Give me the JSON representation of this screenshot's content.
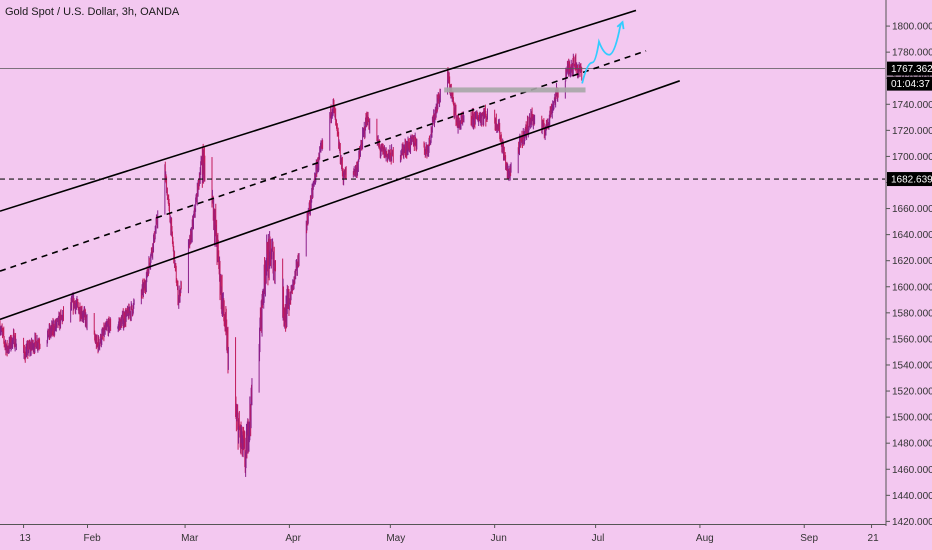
{
  "header": {
    "title": "Gold Spot / U.S. Dollar, 3h, OANDA"
  },
  "colors": {
    "background": "#f3c8f0",
    "candle_up": "#8a1f8a",
    "candle_down": "#c21a5a",
    "trendline": "#000000",
    "projection": "#33ccff",
    "resistance_box": "#a6a6a6",
    "badge": "#000000"
  },
  "chart_data": {
    "type": "candlestick",
    "x_ticks": [
      "13",
      "Feb",
      "Mar",
      "Apr",
      "May",
      "Jun",
      "Jul",
      "Aug",
      "Sep",
      "21"
    ],
    "y_ticks": [
      "1800.000",
      "1780.000",
      "1760.000",
      "1740.000",
      "1720.000",
      "1700.000",
      "1680.000",
      "1660.000",
      "1640.000",
      "1620.000",
      "1600.000",
      "1580.000",
      "1560.000",
      "1540.000",
      "1520.000",
      "1500.000",
      "1480.000",
      "1460.000",
      "1440.000",
      "1420.000"
    ],
    "ylim": [
      1418,
      1820
    ],
    "xlim": [
      "2020-01-06",
      "2020-09-25"
    ],
    "price_path": [
      [
        "2020-01-06",
        1570
      ],
      [
        "2020-01-08",
        1552
      ],
      [
        "2020-01-10",
        1560
      ],
      [
        "2020-01-13",
        1548
      ],
      [
        "2020-01-16",
        1556
      ],
      [
        "2020-01-20",
        1562
      ],
      [
        "2020-01-24",
        1575
      ],
      [
        "2020-01-28",
        1588
      ],
      [
        "2020-01-31",
        1578
      ],
      [
        "2020-02-04",
        1555
      ],
      [
        "2020-02-07",
        1570
      ],
      [
        "2020-02-10",
        1570
      ],
      [
        "2020-02-14",
        1582
      ],
      [
        "2020-02-18",
        1600
      ],
      [
        "2020-02-21",
        1640
      ],
      [
        "2020-02-24",
        1688
      ],
      [
        "2020-02-26",
        1642
      ],
      [
        "2020-02-28",
        1590
      ],
      [
        "2020-03-03",
        1642
      ],
      [
        "2020-03-06",
        1698
      ],
      [
        "2020-03-09",
        1672
      ],
      [
        "2020-03-12",
        1590
      ],
      [
        "2020-03-16",
        1500
      ],
      [
        "2020-03-19",
        1468
      ],
      [
        "2020-03-20",
        1496
      ],
      [
        "2020-03-23",
        1560
      ],
      [
        "2020-03-25",
        1620
      ],
      [
        "2020-03-27",
        1625
      ],
      [
        "2020-03-31",
        1578
      ],
      [
        "2020-04-03",
        1612
      ],
      [
        "2020-04-07",
        1660
      ],
      [
        "2020-04-09",
        1690
      ],
      [
        "2020-04-14",
        1740
      ],
      [
        "2020-04-17",
        1685
      ],
      [
        "2020-04-21",
        1690
      ],
      [
        "2020-04-24",
        1730
      ],
      [
        "2020-04-28",
        1705
      ],
      [
        "2020-05-01",
        1700
      ],
      [
        "2020-05-05",
        1705
      ],
      [
        "2020-05-08",
        1712
      ],
      [
        "2020-05-12",
        1705
      ],
      [
        "2020-05-15",
        1742
      ],
      [
        "2020-05-18",
        1762
      ],
      [
        "2020-05-21",
        1725
      ],
      [
        "2020-05-25",
        1728
      ],
      [
        "2020-05-29",
        1732
      ],
      [
        "2020-06-02",
        1725
      ],
      [
        "2020-06-05",
        1685
      ],
      [
        "2020-06-09",
        1712
      ],
      [
        "2020-06-12",
        1730
      ],
      [
        "2020-06-16",
        1720
      ],
      [
        "2020-06-19",
        1745
      ],
      [
        "2020-06-23",
        1768
      ],
      [
        "2020-06-25",
        1772
      ],
      [
        "2020-06-26",
        1765
      ],
      [
        "2020-06-27",
        1767
      ]
    ],
    "current_price": 1767.362,
    "current_price_label": "1767.362",
    "countdown_label": "01:04:37",
    "horizontal_level": 1682.639,
    "horizontal_level_label": "1682.639",
    "channel": {
      "upper": [
        [
          "2020-01-06",
          1658
        ],
        [
          "2020-07-13",
          1812
        ]
      ],
      "mid": [
        [
          "2020-01-06",
          1612
        ],
        [
          "2020-07-16",
          1781
        ]
      ],
      "lower": [
        [
          "2020-01-06",
          1575
        ],
        [
          "2020-07-26",
          1758
        ]
      ]
    },
    "resistance_zone": {
      "x": [
        "2020-05-17",
        "2020-06-28"
      ],
      "y": 1751
    },
    "projection_path": [
      [
        "2020-06-27",
        1756
      ],
      [
        "2020-06-30",
        1772
      ],
      [
        "2020-07-02",
        1788
      ],
      [
        "2020-07-05",
        1778
      ],
      [
        "2020-07-08",
        1796
      ],
      [
        "2020-07-09",
        1803
      ]
    ]
  }
}
